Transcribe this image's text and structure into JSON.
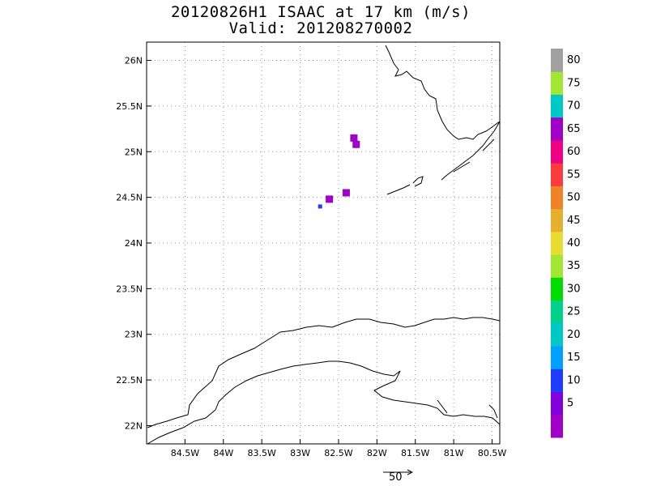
{
  "title": {
    "line1": "20120826H1 ISAAC at 17 km (m/s)",
    "line2": "Valid: 201208270002"
  },
  "map": {
    "lon_range": [
      -85.0,
      -80.4
    ],
    "lat_range": [
      21.8,
      26.2
    ],
    "lon_ticks": [
      {
        "value": -84.5,
        "label": "84.5W"
      },
      {
        "value": -84.0,
        "label": "84W"
      },
      {
        "value": -83.5,
        "label": "83.5W"
      },
      {
        "value": -83.0,
        "label": "83W"
      },
      {
        "value": -82.5,
        "label": "82.5W"
      },
      {
        "value": -82.0,
        "label": "82W"
      },
      {
        "value": -81.5,
        "label": "81.5W"
      },
      {
        "value": -81.0,
        "label": "81W"
      },
      {
        "value": -80.5,
        "label": "80.5W"
      }
    ],
    "lat_ticks": [
      {
        "value": 22.0,
        "label": "22N"
      },
      {
        "value": 22.5,
        "label": "22.5N"
      },
      {
        "value": 23.0,
        "label": "23N"
      },
      {
        "value": 23.5,
        "label": "23.5N"
      },
      {
        "value": 24.0,
        "label": "24N"
      },
      {
        "value": 24.5,
        "label": "24.5N"
      },
      {
        "value": 25.0,
        "label": "25N"
      },
      {
        "value": 25.5,
        "label": "25.5N"
      },
      {
        "value": 26.0,
        "label": "26N"
      }
    ],
    "gridlines": "dotted",
    "coastline_color": "#000000"
  },
  "colorbar": {
    "labels": [
      "5",
      "10",
      "15",
      "20",
      "25",
      "30",
      "35",
      "40",
      "45",
      "50",
      "55",
      "60",
      "65",
      "70",
      "75",
      "80"
    ],
    "colors": [
      "#a000c8",
      "#8200dc",
      "#1e3cff",
      "#00a0ff",
      "#00c8c8",
      "#00d28c",
      "#00dc00",
      "#a0e632",
      "#e6dc32",
      "#e6af2d",
      "#f08228",
      "#fa3c3c",
      "#f00082",
      "#a000c8",
      "#00c8c8",
      "#a0e632",
      "#a0a0a0"
    ]
  },
  "wind_cells": [
    {
      "lon": -82.3,
      "lat": 25.15,
      "speed": 70,
      "color": "#a000c8"
    },
    {
      "lon": -82.27,
      "lat": 25.08,
      "speed": 70,
      "color": "#a000c8"
    },
    {
      "lon": -82.4,
      "lat": 24.55,
      "speed": 70,
      "color": "#a000c8"
    },
    {
      "lon": -82.62,
      "lat": 24.48,
      "speed": 70,
      "color": "#a000c8"
    },
    {
      "lon": -82.74,
      "lat": 24.4,
      "speed": 15,
      "color": "#1e3cff"
    }
  ],
  "reference_vector": {
    "label": "50"
  }
}
